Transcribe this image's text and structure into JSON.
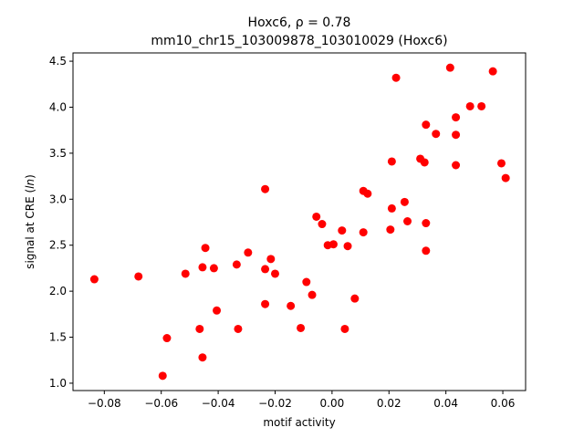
{
  "chart_data": {
    "type": "scatter",
    "title_line1": "Hoxc6, ρ = 0.78",
    "title_line2": "mm10_chr15_103009878_103010029 (Hoxc6)",
    "xlabel": "motif activity",
    "ylabel_prefix": "signal at CRE (",
    "ylabel_italic": "ln",
    "ylabel_suffix": ")",
    "xlim": [
      -0.091,
      0.068
    ],
    "ylim": [
      0.92,
      4.59
    ],
    "xticks": [
      -0.08,
      -0.06,
      -0.04,
      -0.02,
      0.0,
      0.02,
      0.04,
      0.06
    ],
    "xtick_labels": [
      "−0.08",
      "−0.06",
      "−0.04",
      "−0.02",
      "0.00",
      "0.02",
      "0.04",
      "0.06"
    ],
    "yticks": [
      1.0,
      1.5,
      2.0,
      2.5,
      3.0,
      3.5,
      4.0,
      4.5
    ],
    "ytick_labels": [
      "1.0",
      "1.5",
      "2.0",
      "2.5",
      "3.0",
      "3.5",
      "4.0",
      "4.5"
    ],
    "grid": false,
    "marker_color": "#ff0000",
    "points": [
      {
        "x": -0.0835,
        "y": 2.13
      },
      {
        "x": -0.068,
        "y": 2.16
      },
      {
        "x": -0.0595,
        "y": 1.08
      },
      {
        "x": -0.058,
        "y": 1.49
      },
      {
        "x": -0.0515,
        "y": 2.19
      },
      {
        "x": -0.0465,
        "y": 1.59
      },
      {
        "x": -0.0455,
        "y": 2.26
      },
      {
        "x": -0.0455,
        "y": 1.28
      },
      {
        "x": -0.0445,
        "y": 2.47
      },
      {
        "x": -0.0415,
        "y": 2.25
      },
      {
        "x": -0.0405,
        "y": 1.79
      },
      {
        "x": -0.0335,
        "y": 2.29
      },
      {
        "x": -0.033,
        "y": 1.59
      },
      {
        "x": -0.0295,
        "y": 2.42
      },
      {
        "x": -0.0235,
        "y": 3.11
      },
      {
        "x": -0.0235,
        "y": 2.24
      },
      {
        "x": -0.0235,
        "y": 1.86
      },
      {
        "x": -0.0215,
        "y": 2.35
      },
      {
        "x": -0.02,
        "y": 2.19
      },
      {
        "x": -0.0145,
        "y": 1.84
      },
      {
        "x": -0.011,
        "y": 1.6
      },
      {
        "x": -0.009,
        "y": 2.1
      },
      {
        "x": -0.007,
        "y": 1.96
      },
      {
        "x": -0.0055,
        "y": 2.81
      },
      {
        "x": -0.0035,
        "y": 2.73
      },
      {
        "x": -0.0015,
        "y": 2.5
      },
      {
        "x": 0.0005,
        "y": 2.51
      },
      {
        "x": 0.0035,
        "y": 2.66
      },
      {
        "x": 0.0045,
        "y": 1.59
      },
      {
        "x": 0.0055,
        "y": 2.49
      },
      {
        "x": 0.008,
        "y": 1.92
      },
      {
        "x": 0.011,
        "y": 3.09
      },
      {
        "x": 0.011,
        "y": 2.64
      },
      {
        "x": 0.0125,
        "y": 3.06
      },
      {
        "x": 0.0205,
        "y": 2.67
      },
      {
        "x": 0.021,
        "y": 3.41
      },
      {
        "x": 0.021,
        "y": 2.9
      },
      {
        "x": 0.0225,
        "y": 4.32
      },
      {
        "x": 0.0255,
        "y": 2.97
      },
      {
        "x": 0.0265,
        "y": 2.76
      },
      {
        "x": 0.031,
        "y": 3.44
      },
      {
        "x": 0.0325,
        "y": 3.4
      },
      {
        "x": 0.033,
        "y": 3.81
      },
      {
        "x": 0.033,
        "y": 2.74
      },
      {
        "x": 0.033,
        "y": 2.44
      },
      {
        "x": 0.0415,
        "y": 4.43
      },
      {
        "x": 0.0435,
        "y": 3.89
      },
      {
        "x": 0.0435,
        "y": 3.7
      },
      {
        "x": 0.0435,
        "y": 3.37
      },
      {
        "x": 0.0365,
        "y": 3.71
      },
      {
        "x": 0.0485,
        "y": 4.01
      },
      {
        "x": 0.0525,
        "y": 4.01
      },
      {
        "x": 0.0565,
        "y": 4.39
      },
      {
        "x": 0.0595,
        "y": 3.39
      },
      {
        "x": 0.061,
        "y": 3.23
      }
    ]
  }
}
